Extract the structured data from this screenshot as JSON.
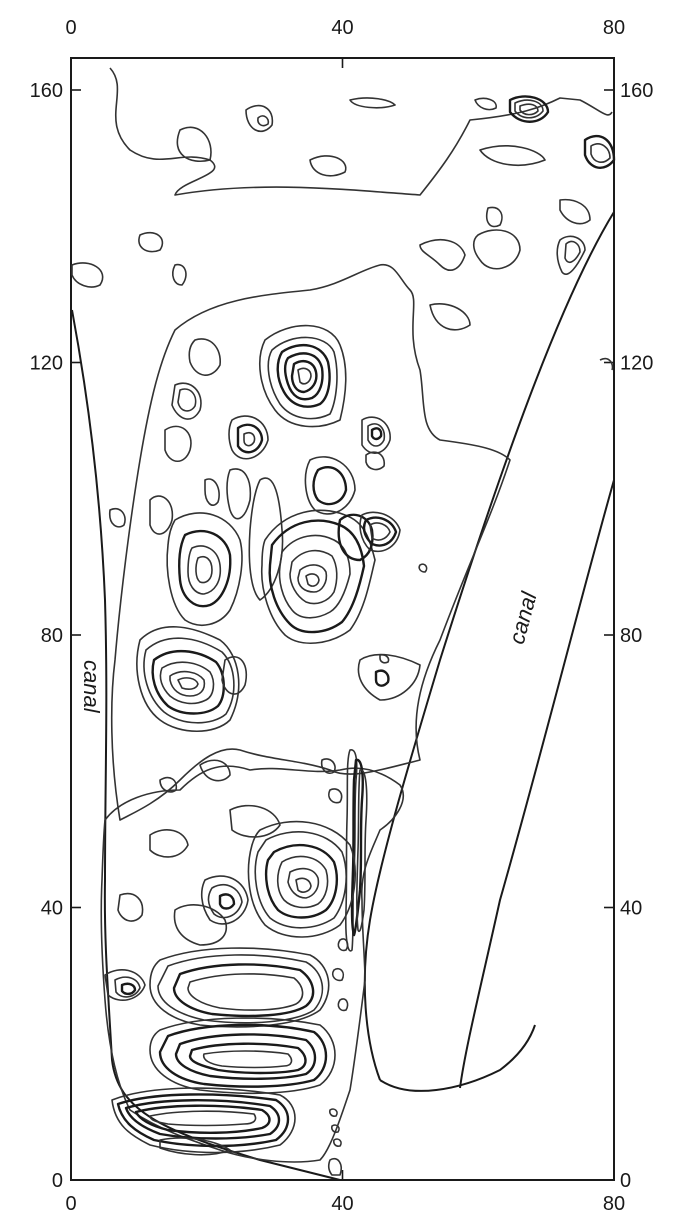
{
  "map": {
    "x_axis": {
      "range": [
        0,
        80
      ],
      "ticks": [
        0,
        40,
        80
      ],
      "tick_labels": [
        "0",
        "40",
        "80"
      ]
    },
    "y_axis": {
      "range": [
        0,
        160
      ],
      "ticks": [
        0,
        40,
        80,
        120,
        160
      ],
      "tick_labels": [
        "0",
        "40",
        "80",
        "120",
        "160"
      ]
    },
    "labels": {
      "canal_left": "canal",
      "canal_right": "canal"
    },
    "colors": {
      "line": "#1a1a1a",
      "contour": "#333333",
      "background": "#ffffff"
    }
  }
}
